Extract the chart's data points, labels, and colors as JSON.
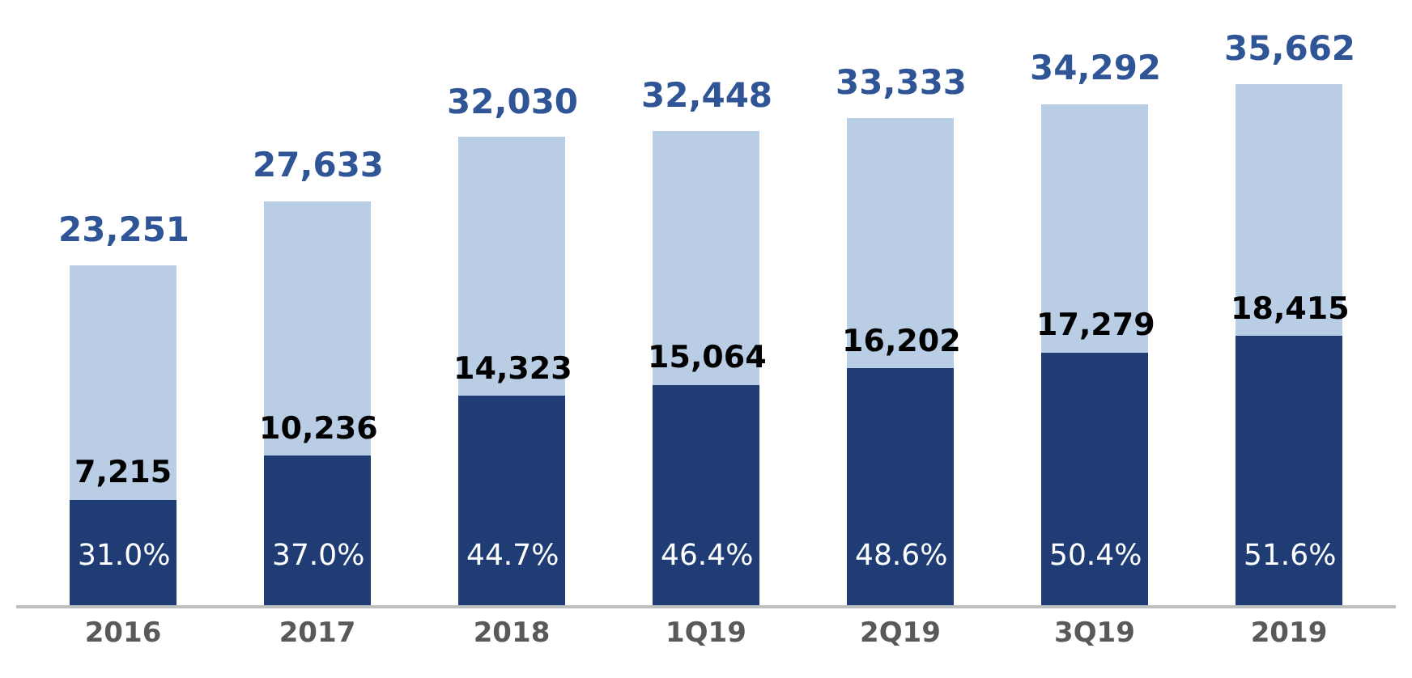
{
  "chart_data": {
    "type": "bar",
    "stacked": true,
    "categories": [
      "2016",
      "2017",
      "2018",
      "1Q19",
      "2Q19",
      "3Q19",
      "2019"
    ],
    "series": [
      {
        "color": "#1f3d74",
        "values": [
          7215,
          10236,
          14323,
          15064,
          16202,
          17279,
          18415
        ],
        "value_labels": [
          "7,215",
          "10,236",
          "14,323",
          "15,064",
          "16,202",
          "17,279",
          "18,415"
        ]
      },
      {
        "color": "#b9cde5",
        "values": [
          16036,
          17397,
          17707,
          17384,
          17131,
          17013,
          17247
        ]
      }
    ],
    "totals": [
      "23,251",
      "27,633",
      "32,030",
      "32,448",
      "33,333",
      "34,292",
      "35,662"
    ],
    "annotations": [
      "31.0%",
      "37.0%",
      "44.7%",
      "46.4%",
      "48.6%",
      "50.4%",
      "51.6%"
    ]
  }
}
